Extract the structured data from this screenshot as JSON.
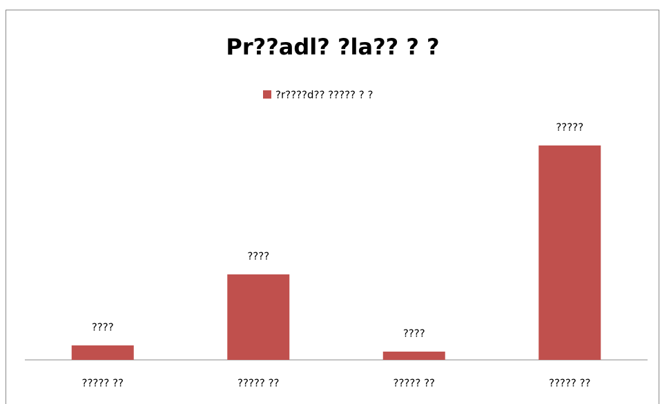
{
  "chart_data": {
    "type": "bar",
    "title": "Pr??adl? ?la?? ? ?",
    "categories": [
      "????? ??",
      "????? ??",
      "????? ??",
      "????? ??"
    ],
    "series": [
      {
        "name": "?r????d?? ????? ? ?",
        "color": "#c0504d",
        "values": [
          21,
          124,
          12,
          311
        ],
        "value_labels": [
          "????",
          "????",
          "????",
          "?????"
        ]
      }
    ]
  }
}
